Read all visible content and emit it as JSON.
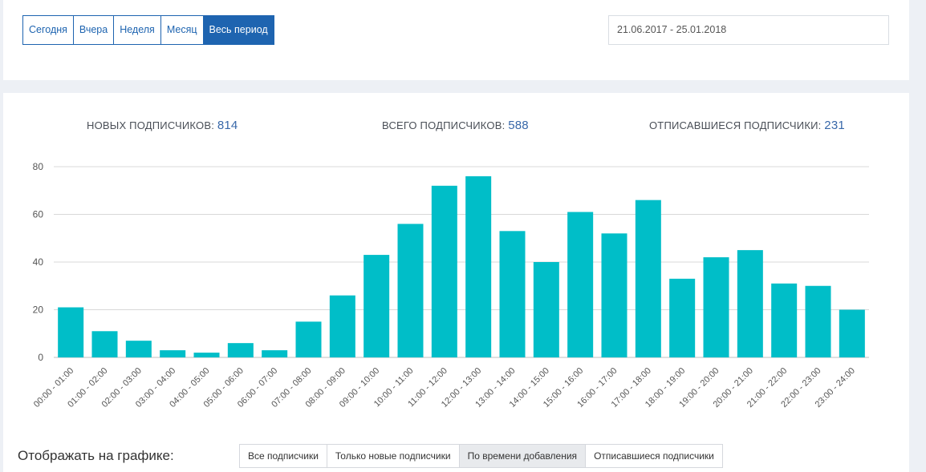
{
  "period_buttons": [
    {
      "label": "Сегодня",
      "active": false
    },
    {
      "label": "Вчера",
      "active": false
    },
    {
      "label": "Неделя",
      "active": false
    },
    {
      "label": "Месяц",
      "active": false
    },
    {
      "label": "Весь период",
      "active": true
    }
  ],
  "date_range": "21.06.2017 - 25.01.2018",
  "stats": {
    "new_label": "НОВЫХ ПОДПИСЧИКОВ:",
    "new_value": "814",
    "total_label": "ВСЕГО ПОДПИСЧИКОВ:",
    "total_value": "588",
    "unsub_label": "ОТПИСАВШИЕСЯ ПОДПИСЧИКИ:",
    "unsub_value": "231"
  },
  "chart_data": {
    "type": "bar",
    "categories": [
      "00:00 - 01:00",
      "01:00 - 02:00",
      "02:00 - 03:00",
      "03:00 - 04:00",
      "04:00 - 05:00",
      "05:00 - 06:00",
      "06:00 - 07:00",
      "07:00 - 08:00",
      "08:00 - 09:00",
      "09:00 - 10:00",
      "10:00 - 11:00",
      "11:00 - 12:00",
      "12:00 - 13:00",
      "13:00 - 14:00",
      "14:00 - 15:00",
      "15:00 - 16:00",
      "16:00 - 17:00",
      "17:00 - 18:00",
      "18:00 - 19:00",
      "19:00 - 20:00",
      "20:00 - 21:00",
      "21:00 - 22:00",
      "22:00 - 23:00",
      "23:00 - 24:00"
    ],
    "values": [
      21,
      11,
      7,
      3,
      2,
      6,
      3,
      15,
      26,
      43,
      56,
      72,
      76,
      53,
      40,
      61,
      52,
      66,
      33,
      42,
      45,
      31,
      30,
      20
    ],
    "yticks": [
      "0",
      "20",
      "40",
      "60",
      "80"
    ],
    "ylim": [
      0,
      80
    ],
    "grid": true,
    "bar_color": "#00bec8",
    "title": "",
    "xlabel": "",
    "ylabel": ""
  },
  "show_label": "Отображать на графике:",
  "filter_buttons": [
    {
      "label": "Все подписчики",
      "active": false
    },
    {
      "label": "Только новые подписчики",
      "active": false
    },
    {
      "label": "По времени добавления",
      "active": true
    },
    {
      "label": "Отписавшиеся подписчики",
      "active": false
    }
  ]
}
